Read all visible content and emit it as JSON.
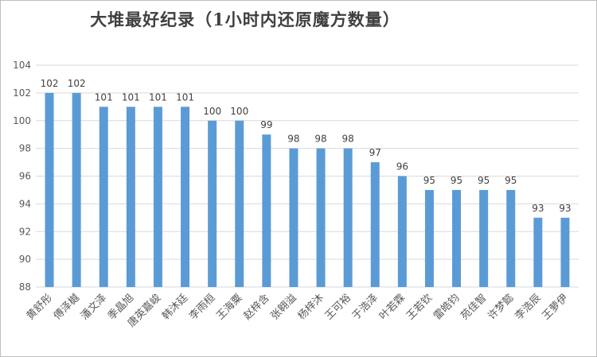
{
  "chart_data": {
    "type": "bar",
    "title": "大堆最好纪录（1小时内还原魔方数量）",
    "xlabel": "",
    "ylabel": "",
    "categories": [
      "黄舒彤",
      "傅泽樾",
      "潘文泽",
      "季晶旭",
      "唐英嘉峻",
      "韩沐廷",
      "李雨桓",
      "王海粟",
      "赵梓含",
      "张翱溢",
      "杨梓沐",
      "王可裕",
      "于浩泽",
      "叶若霖",
      "王若钦",
      "雷皓钧",
      "苑佳智",
      "许梦懿",
      "李浩辰",
      "王萝伊"
    ],
    "values": [
      102,
      102,
      101,
      101,
      101,
      101,
      100,
      100,
      99,
      98,
      98,
      98,
      97,
      96,
      95,
      95,
      95,
      95,
      93,
      93
    ],
    "ylim": [
      88,
      104
    ],
    "yticks": [
      88,
      90,
      92,
      94,
      96,
      98,
      100,
      102,
      104
    ],
    "grid": true,
    "bar_color": "#5b9bd5",
    "grid_color": "#d9d9d9"
  }
}
